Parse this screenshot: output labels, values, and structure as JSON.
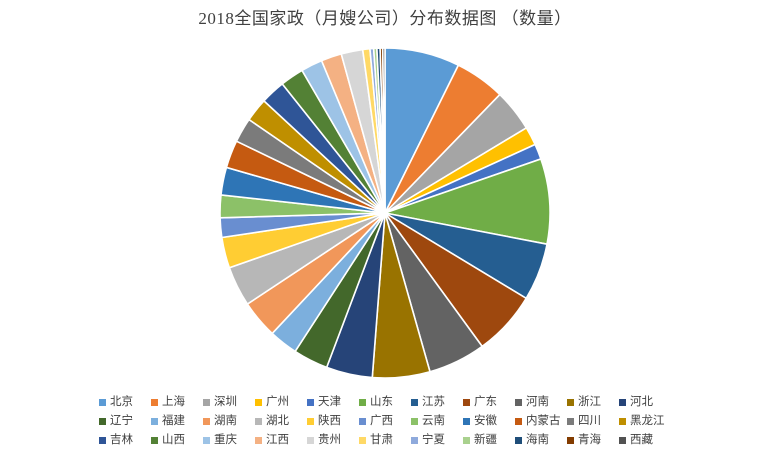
{
  "title": "2018全国家政（月嫂公司）分布数据图 （数量）",
  "colors": {
    "background": "#FFFFFF",
    "title_text": "#404040",
    "legend_text": "#404040",
    "slice_border": "#FFFFFF"
  },
  "chart_data": {
    "type": "pie",
    "title": "2018全国家政（月嫂公司）分布数据图 （数量）",
    "start_angle_deg": 0,
    "clockwise": true,
    "legend_position": "bottom",
    "legend_rows": 3,
    "legend_items_per_row": 11,
    "categories": [
      "北京",
      "上海",
      "深圳",
      "广州",
      "天津",
      "山东",
      "江苏",
      "广东",
      "河南",
      "浙江",
      "河北",
      "辽宁",
      "福建",
      "湖南",
      "湖北",
      "陕西",
      "广西",
      "云南",
      "安徽",
      "内蒙古",
      "四川",
      "黑龙江",
      "吉林",
      "山西",
      "重庆",
      "江西",
      "贵州",
      "甘肃",
      "宁夏",
      "新疆",
      "海南",
      "青海",
      "西藏"
    ],
    "values": [
      7.3,
      4.9,
      4.1,
      1.8,
      1.5,
      8.3,
      5.6,
      6.3,
      5.6,
      5.6,
      4.5,
      3.4,
      2.8,
      3.7,
      3.9,
      3.0,
      1.9,
      2.2,
      2.7,
      2.7,
      2.4,
      2.3,
      2.4,
      2.3,
      2.1,
      2.0,
      2.1,
      0.7,
      0.36,
      0.31,
      0.31,
      0.25,
      0.22
    ],
    "slice_colors": [
      "#5B9BD5",
      "#ED7D31",
      "#A5A5A5",
      "#FFC000",
      "#4472C4",
      "#70AD47",
      "#255E91",
      "#9E480E",
      "#636363",
      "#997300",
      "#264478",
      "#43682B",
      "#7CAFDD",
      "#F1975A",
      "#B7B7B7",
      "#FFCD33",
      "#698ED0",
      "#8CC168",
      "#2E75B6",
      "#C55A11",
      "#7B7B7B",
      "#BF8F00",
      "#2F5597",
      "#538135",
      "#9DC3E6",
      "#F4B183",
      "#D6D6D6",
      "#FFD966",
      "#8FAADC",
      "#A9D18E",
      "#1F4E79",
      "#833C00",
      "#525252"
    ],
    "value_unit": "percent_share_estimated"
  }
}
